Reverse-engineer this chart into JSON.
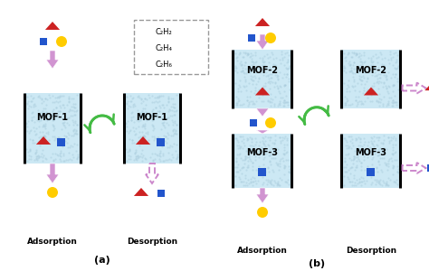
{
  "background": "#ffffff",
  "light_blue": "#cce8f4",
  "arrow_solid_color": "#cc88cc",
  "arrow_dashed_color": "#cc88cc",
  "green_color": "#44bb44",
  "red": "#cc2222",
  "blue": "#2255cc",
  "yellow": "#ffcc00",
  "legend_border": "#999999",
  "title_a": "(a)",
  "title_b": "(b)",
  "label_adsorption_a": "Adsorption",
  "label_desorption_a": "Desorption",
  "label_adsorption_b": "Adsorption",
  "label_desorption_b": "Desorption",
  "mof1_label": "MOF-1",
  "mof2_label": "MOF-2",
  "mof3_label": "MOF-3",
  "legend_labels": [
    "C₂H₂",
    "C₂H₄",
    "C₂H₆"
  ]
}
